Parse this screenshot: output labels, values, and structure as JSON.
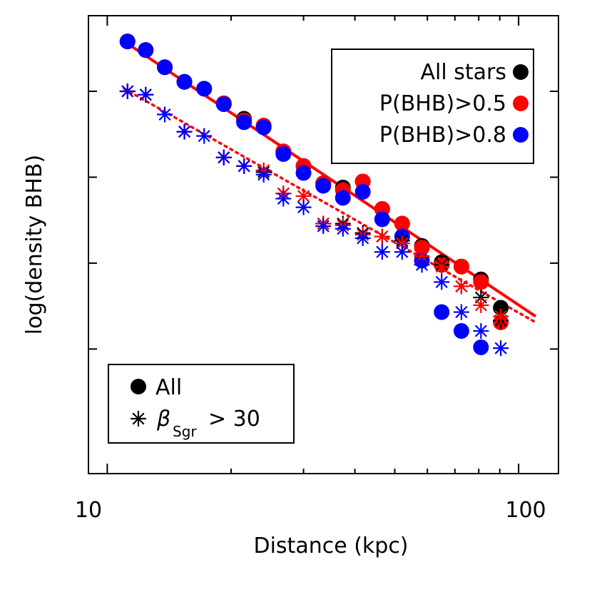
{
  "chart_data": {
    "type": "scatter",
    "xlabel": "Distance (kpc)",
    "ylabel": "log(density BHB)",
    "x_scale": "log",
    "xlim": [
      9.0,
      125.0
    ],
    "ylim": [
      -5.03,
      0.3
    ],
    "x_ticks": [
      10,
      100
    ],
    "x_tick_labels": [
      "10",
      "100"
    ],
    "legend_top_right": [
      "All stars",
      "P(BHB)>0.5",
      "P(BHB)>0.8"
    ],
    "legend_bottom_left": {
      "circle_label": "All",
      "star_label_main": "β",
      "star_label_sub": "Sgr",
      "star_label_rest": "> 30"
    },
    "colors": {
      "all": "#000000",
      "p05": "#ff0000",
      "p08": "#0000ff"
    },
    "series": [
      {
        "name": "All stars",
        "marker": "circle",
        "color": "#000000",
        "points": [
          [
            11.2,
            0.0
          ],
          [
            12.4,
            -0.1
          ],
          [
            13.8,
            -0.3
          ],
          [
            15.4,
            -0.47
          ],
          [
            17.2,
            -0.55
          ],
          [
            19.2,
            -0.72
          ],
          [
            21.5,
            -0.9
          ],
          [
            24.0,
            -0.98
          ],
          [
            26.8,
            -1.28
          ],
          [
            30.0,
            -1.45
          ],
          [
            33.5,
            -1.65
          ],
          [
            37.4,
            -1.7
          ],
          [
            41.8,
            -1.63
          ],
          [
            46.6,
            -1.95
          ],
          [
            52.1,
            -2.12
          ],
          [
            58.2,
            -2.38
          ],
          [
            65.0,
            -2.57
          ],
          [
            72.6,
            -2.62
          ],
          [
            81.0,
            -2.77
          ],
          [
            90.5,
            -3.1
          ]
        ]
      },
      {
        "name": "P(BHB)>0.5",
        "marker": "circle",
        "color": "#ff0000",
        "points": [
          [
            11.2,
            0.0
          ],
          [
            12.4,
            -0.1
          ],
          [
            13.8,
            -0.3
          ],
          [
            15.4,
            -0.47
          ],
          [
            17.2,
            -0.55
          ],
          [
            19.2,
            -0.72
          ],
          [
            21.5,
            -0.92
          ],
          [
            24.0,
            -0.98
          ],
          [
            26.8,
            -1.28
          ],
          [
            30.0,
            -1.45
          ],
          [
            33.5,
            -1.65
          ],
          [
            37.4,
            -1.73
          ],
          [
            41.8,
            -1.63
          ],
          [
            46.6,
            -1.95
          ],
          [
            52.1,
            -2.12
          ],
          [
            58.2,
            -2.4
          ],
          [
            65.0,
            -2.6
          ],
          [
            72.6,
            -2.62
          ],
          [
            81.0,
            -2.8
          ],
          [
            90.5,
            -3.27
          ]
        ]
      },
      {
        "name": "P(BHB)>0.8",
        "marker": "circle",
        "color": "#0000ff",
        "points": [
          [
            11.2,
            0.0
          ],
          [
            12.4,
            -0.1
          ],
          [
            13.8,
            -0.3
          ],
          [
            15.4,
            -0.47
          ],
          [
            17.2,
            -0.55
          ],
          [
            19.2,
            -0.73
          ],
          [
            21.5,
            -0.94
          ],
          [
            24.0,
            -1.0
          ],
          [
            26.8,
            -1.31
          ],
          [
            30.0,
            -1.53
          ],
          [
            33.5,
            -1.68
          ],
          [
            37.4,
            -1.82
          ],
          [
            41.8,
            -1.75
          ],
          [
            46.6,
            -2.07
          ],
          [
            52.1,
            -2.27
          ],
          [
            58.2,
            -2.55
          ],
          [
            65.0,
            -3.15
          ],
          [
            72.6,
            -3.37
          ],
          [
            81.0,
            -3.56
          ]
        ]
      },
      {
        "name": "All, βSgr > 30",
        "marker": "asterisk",
        "color": "#000000",
        "points": [
          [
            11.2,
            -0.58
          ],
          [
            12.4,
            -0.62
          ],
          [
            15.4,
            -1.05
          ],
          [
            19.2,
            -1.35
          ],
          [
            21.5,
            -1.45
          ],
          [
            24.0,
            -1.52
          ],
          [
            26.8,
            -1.77
          ],
          [
            33.5,
            -2.12
          ],
          [
            37.4,
            -2.12
          ],
          [
            41.8,
            -2.23
          ],
          [
            46.6,
            -2.27
          ],
          [
            52.1,
            -2.32
          ],
          [
            58.2,
            -2.5
          ],
          [
            65.0,
            -2.6
          ],
          [
            72.6,
            -2.85
          ],
          [
            81.0,
            -2.98
          ],
          [
            90.5,
            -3.25
          ]
        ]
      },
      {
        "name": "P(BHB)>0.5, βSgr > 30",
        "marker": "asterisk",
        "color": "#ff0000",
        "points": [
          [
            11.2,
            -0.58
          ],
          [
            12.4,
            -0.62
          ],
          [
            15.4,
            -1.05
          ],
          [
            19.2,
            -1.35
          ],
          [
            21.5,
            -1.45
          ],
          [
            24.0,
            -1.5
          ],
          [
            26.8,
            -1.77
          ],
          [
            30.0,
            -1.8
          ],
          [
            33.5,
            -2.12
          ],
          [
            37.4,
            -2.14
          ],
          [
            41.8,
            -2.25
          ],
          [
            46.6,
            -2.27
          ],
          [
            52.1,
            -2.35
          ],
          [
            58.2,
            -2.5
          ],
          [
            65.0,
            -2.62
          ],
          [
            72.6,
            -2.85
          ],
          [
            81.0,
            -3.07
          ],
          [
            90.5,
            -3.2
          ]
        ]
      },
      {
        "name": "P(BHB)>0.8, βSgr > 30",
        "marker": "asterisk",
        "color": "#0000ff",
        "points": [
          [
            11.2,
            -0.58
          ],
          [
            12.4,
            -0.62
          ],
          [
            13.8,
            -0.85
          ],
          [
            15.4,
            -1.05
          ],
          [
            17.2,
            -1.1
          ],
          [
            19.2,
            -1.35
          ],
          [
            21.5,
            -1.45
          ],
          [
            24.0,
            -1.55
          ],
          [
            26.8,
            -1.83
          ],
          [
            30.0,
            -1.93
          ],
          [
            33.5,
            -2.15
          ],
          [
            37.4,
            -2.18
          ],
          [
            41.8,
            -2.29
          ],
          [
            46.6,
            -2.45
          ],
          [
            52.1,
            -2.45
          ],
          [
            58.2,
            -2.6
          ],
          [
            65.0,
            -2.8
          ],
          [
            72.6,
            -3.15
          ],
          [
            81.0,
            -3.37
          ],
          [
            90.5,
            -3.57
          ]
        ]
      }
    ],
    "fit_lines": [
      {
        "name": "fit-all",
        "style": "solid",
        "color": "#ff0000",
        "x": [
          11.0,
          110.0
        ],
        "y": [
          0.0,
          -3.2
        ]
      },
      {
        "name": "fit-beta",
        "style": "dotted",
        "color": "#ff0000",
        "x": [
          11.0,
          110.0
        ],
        "y": [
          -0.55,
          -3.27
        ]
      }
    ]
  }
}
